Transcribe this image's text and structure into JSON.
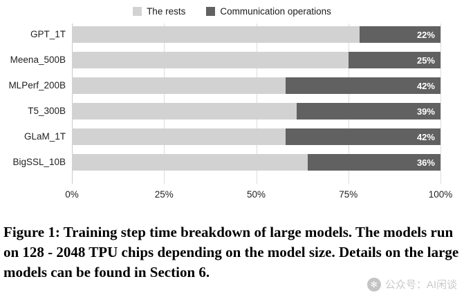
{
  "legend": {
    "items": [
      {
        "label": "The rests",
        "color": "#d2d2d2"
      },
      {
        "label": "Communication operations",
        "color": "#616161"
      }
    ]
  },
  "chart_data": {
    "type": "bar",
    "orientation": "horizontal",
    "stacked": true,
    "title": "",
    "xlabel": "",
    "ylabel": "",
    "xlim": [
      0,
      100
    ],
    "grid": true,
    "legend_position": "top",
    "categories": [
      "GPT_1T",
      "Meena_500B",
      "MLPerf_200B",
      "T5_300B",
      "GLaM_1T",
      "BigSSL_10B"
    ],
    "series": [
      {
        "name": "The rests",
        "color": "#d2d2d2",
        "values": [
          78,
          75,
          58,
          61,
          58,
          64
        ]
      },
      {
        "name": "Communication operations",
        "color": "#616161",
        "values": [
          22,
          25,
          42,
          39,
          42,
          36
        ]
      }
    ],
    "bar_labels": [
      "22%",
      "25%",
      "42%",
      "39%",
      "42%",
      "36%"
    ],
    "x_ticks": [
      "0%",
      "25%",
      "50%",
      "75%",
      "100%"
    ],
    "x_tick_values": [
      0,
      25,
      50,
      75,
      100
    ]
  },
  "caption": {
    "text": "Figure 1: Training step time breakdown of large models. The models run on 128 - 2048 TPU chips depending on the model size. Details on the large models can be found in Section 6."
  },
  "watermark": {
    "text": "公众号：AI闲谈",
    "icon": "share-badge"
  }
}
